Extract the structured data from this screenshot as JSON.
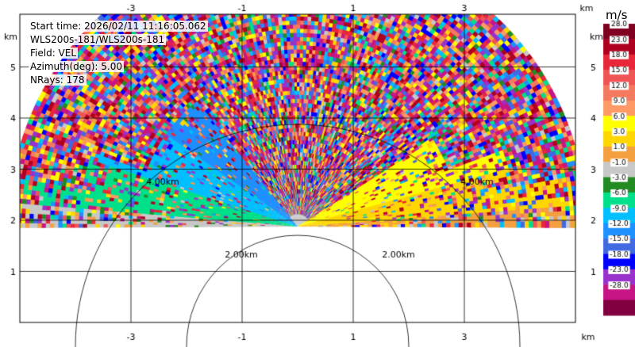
{
  "info": {
    "start_time": "Start time: 2026/02/11 11:16:05.062",
    "instrument": "WLS200s-181/WLS200s-181",
    "field": "Field: VEL",
    "azimuth": "Azimuth(deg): 5.00",
    "nrays": "NRays: 178"
  },
  "chart_data": {
    "type": "heatmap",
    "title": "",
    "xlabel": "km",
    "ylabel": "km",
    "x_ticks": [
      -3,
      -1,
      1,
      3
    ],
    "y_ticks": [
      1,
      2,
      3,
      4,
      5
    ],
    "range_ring_labels": [
      "2.00km",
      "2.00km",
      "4.00km",
      "4.00km"
    ],
    "colorbar": {
      "unit": "m/s",
      "ticks": [
        "28.0",
        "23.0",
        "18.0",
        "15.0",
        "12.0",
        "9.0",
        "6.0",
        "3.0",
        "1.0",
        "-1.0",
        "-3.0",
        "-6.0",
        "-9.0",
        "-12.0",
        "-15.0",
        "-18.0",
        "-23.0",
        "-28.0"
      ],
      "colors": [
        "#7f0020",
        "#b00020",
        "#e8283a",
        "#f05555",
        "#f47a5f",
        "#ff9a66",
        "#ffff00",
        "#ffd700",
        "#f4a040",
        "#c8c8c8",
        "#228b22",
        "#00e08a",
        "#00bfff",
        "#1e90ff",
        "#4169e1",
        "#0000ff",
        "#9932cc",
        "#c71585",
        "#800040"
      ]
    },
    "sectors": [
      {
        "azimuth_from_deg": -55,
        "azimuth_to_deg": -38,
        "value": -10.5
      },
      {
        "azimuth_from_deg": -72,
        "azimuth_to_deg": -55,
        "value": -7.5
      },
      {
        "azimuth_from_deg": -85,
        "azimuth_to_deg": -72,
        "value": -4.5
      },
      {
        "azimuth_from_deg": -90,
        "azimuth_to_deg": -85,
        "value": 0
      },
      {
        "azimuth_from_deg": 58,
        "azimuth_to_deg": 75,
        "value": 7.5
      },
      {
        "azimuth_from_deg": 75,
        "azimuth_to_deg": 86,
        "value": 4.5
      },
      {
        "azimuth_from_deg": 86,
        "azimuth_to_deg": 90,
        "value": 2
      }
    ],
    "data_extent_km": 5.2,
    "xlim": [
      -5.1,
      5.1
    ],
    "ylim": [
      0.0,
      6.3
    ],
    "grid": true
  }
}
